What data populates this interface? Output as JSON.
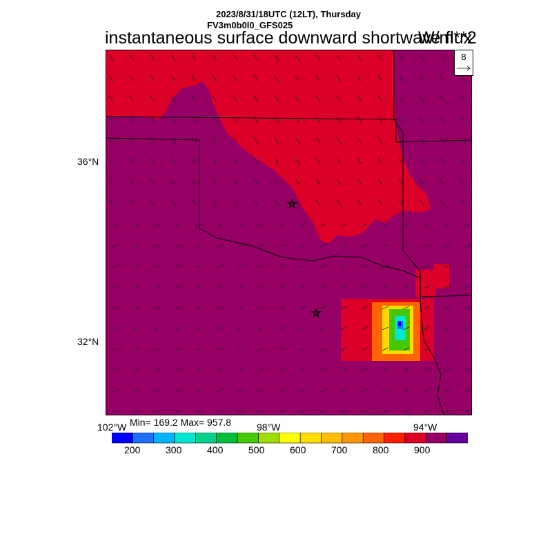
{
  "header": {
    "line1": "2023/8/31/18UTC (12LT), Thursday",
    "line2": "FV3m0b0l0_GFS025",
    "title": "instantaneous surface downward shortwave flux",
    "units": "W/m**2"
  },
  "reference_vector": {
    "value": "8"
  },
  "axes": {
    "lat_labels": [
      "36°N",
      "32°N"
    ],
    "lon_labels": [
      "102°W",
      "98°W",
      "94°W"
    ]
  },
  "stats": {
    "text": "Min= 169.2 Max= 957.8"
  },
  "colorbar": {
    "labels": [
      "200",
      "300",
      "400",
      "500",
      "600",
      "700",
      "800",
      "900"
    ],
    "colors": [
      "#0000ff",
      "#1e6eff",
      "#00b4ff",
      "#00e6d2",
      "#00d28c",
      "#00be3c",
      "#46c800",
      "#a0dc00",
      "#ffff00",
      "#ffdc00",
      "#ffbe00",
      "#ff9600",
      "#ff6400",
      "#ff1e00",
      "#dc0028",
      "#960064",
      "#64009b"
    ]
  },
  "field": {
    "background_color": "#960064",
    "high_color": "#dc0028",
    "features": [
      "storm-cell-east-texas",
      "markers-two-stars"
    ]
  }
}
